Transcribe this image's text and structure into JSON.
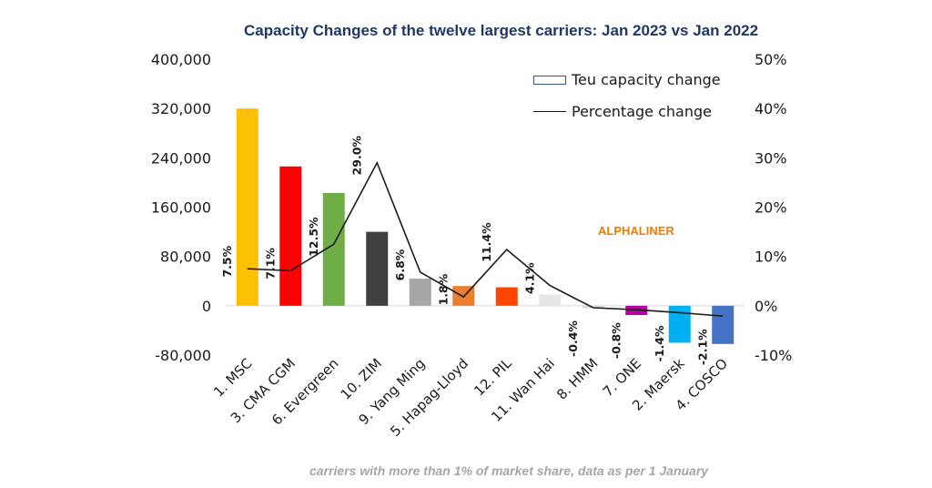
{
  "chart_data": {
    "type": "bar",
    "title": "Capacity Changes of the twelve largest carriers: Jan 2023 vs Jan 2022",
    "footnote": "carriers with more than 1% of market share, data as per 1 January",
    "watermark": "ALPHALINER",
    "categories": [
      "1. MSC",
      "3. CMA CGM",
      "6. Evergreen",
      "10. ZIM",
      "9. Yang Ming",
      "5. Hapag-Lloyd",
      "12. PIL",
      "11. Wan Hai",
      "8. HMM",
      "7. ONE",
      "2. Maersk",
      "4. COSCO"
    ],
    "colors": [
      "#ffc000",
      "#ff0000",
      "#70ad47",
      "#404040",
      "#a6a6a6",
      "#ed7d31",
      "#ff4500",
      "#e7e6e6",
      "#d9d9d9",
      "#b4009e",
      "#00b0f0",
      "#4472c4"
    ],
    "series": [
      {
        "name": "Teu capacity change",
        "axis": "left",
        "values": [
          320000,
          226000,
          183000,
          120000,
          44000,
          32000,
          30000,
          18000,
          -4000,
          -15000,
          -60000,
          -62000
        ]
      },
      {
        "name": "Percentage change",
        "axis": "right",
        "values": [
          7.5,
          7.1,
          12.5,
          29.0,
          6.8,
          1.8,
          11.4,
          4.1,
          -0.4,
          -0.8,
          -1.4,
          -2.1
        ],
        "labels": [
          "7.5%",
          "7.1%",
          "12.5%",
          "29.0%",
          "6.8%",
          "1.8%",
          "11.4%",
          "4.1%",
          "-0.4%",
          "-0.8%",
          "-1.4%",
          "-2.1%"
        ]
      }
    ],
    "left_axis": {
      "ylim": [
        -80000,
        400000
      ],
      "ticks": [
        400000,
        320000,
        240000,
        160000,
        80000,
        0,
        -80000
      ],
      "tick_labels": [
        "400,000",
        "320,000",
        "240,000",
        "160,000",
        "80,000",
        "0",
        "-80,000"
      ]
    },
    "right_axis": {
      "ylim": [
        -10,
        50
      ],
      "ticks": [
        50,
        40,
        30,
        20,
        10,
        0,
        -10
      ],
      "tick_labels": [
        "50%",
        "40%",
        "30%",
        "20%",
        "10%",
        "0%",
        "-10%"
      ]
    },
    "legend": [
      "Teu capacity change",
      "Percentage change"
    ],
    "legend_position": "top-right",
    "grid": false
  }
}
